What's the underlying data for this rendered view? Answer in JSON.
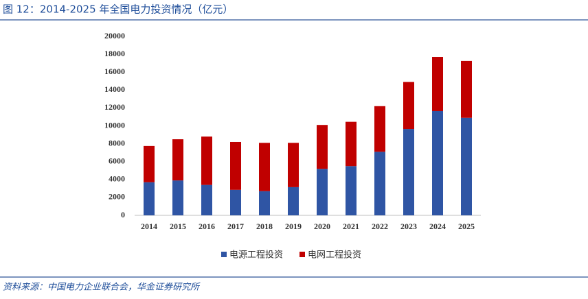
{
  "chart_data": {
    "type": "stacked_bar",
    "title": "图 12：2014-2025 年全国电力投资情况（亿元）",
    "source": "资料来源：中国电力企业联合会，华金证券研究所",
    "categories": [
      "2014",
      "2015",
      "2016",
      "2017",
      "2018",
      "2019",
      "2020",
      "2021",
      "2022",
      "2023",
      "2024",
      "2025"
    ],
    "series": [
      {
        "name": "电源工程投资",
        "color": "#2f55a4",
        "values": [
          3700,
          3900,
          3400,
          2850,
          2700,
          3150,
          5200,
          5500,
          7100,
          9650,
          11650,
          10900
        ]
      },
      {
        "name": "电网工程投资",
        "color": "#c00000",
        "values": [
          4050,
          4600,
          5400,
          5350,
          5400,
          4950,
          4900,
          4950,
          5100,
          5250,
          6050,
          6350
        ]
      }
    ],
    "ylim": [
      0,
      20000
    ],
    "yticks": [
      0,
      2000,
      4000,
      6000,
      8000,
      10000,
      12000,
      14000,
      16000,
      18000,
      20000
    ],
    "grid": false,
    "legend": "bottom"
  }
}
